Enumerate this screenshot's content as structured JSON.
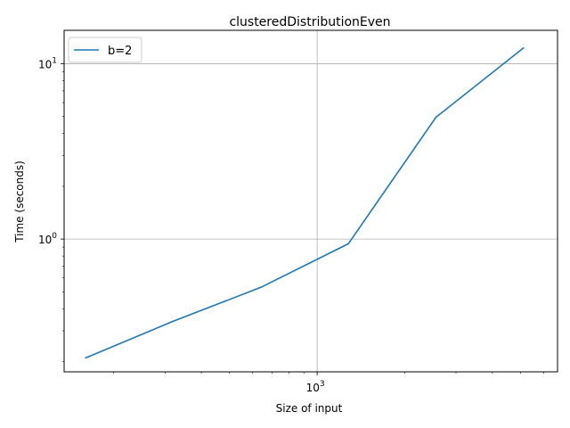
{
  "chart_data": {
    "type": "line",
    "title": "clusteredDistributionEven",
    "xlabel": "Size of input",
    "ylabel": "Time (seconds)",
    "xscale": "log",
    "yscale": "log",
    "xlim": [
      135,
      6700
    ],
    "ylim": [
      0.175,
      15.5
    ],
    "x_ticks": [
      {
        "value": 1000,
        "base": "10",
        "exp": "3"
      }
    ],
    "y_ticks": [
      {
        "value": 1,
        "base": "10",
        "exp": "0"
      },
      {
        "value": 10,
        "base": "10",
        "exp": "1"
      }
    ],
    "grid": true,
    "legend": "upper left",
    "series": [
      {
        "name": "b=2",
        "color": "#1f77b4",
        "x": [
          160,
          320,
          640,
          1280,
          2560,
          5120
        ],
        "y": [
          0.21,
          0.34,
          0.53,
          0.94,
          4.95,
          12.3
        ]
      }
    ]
  }
}
